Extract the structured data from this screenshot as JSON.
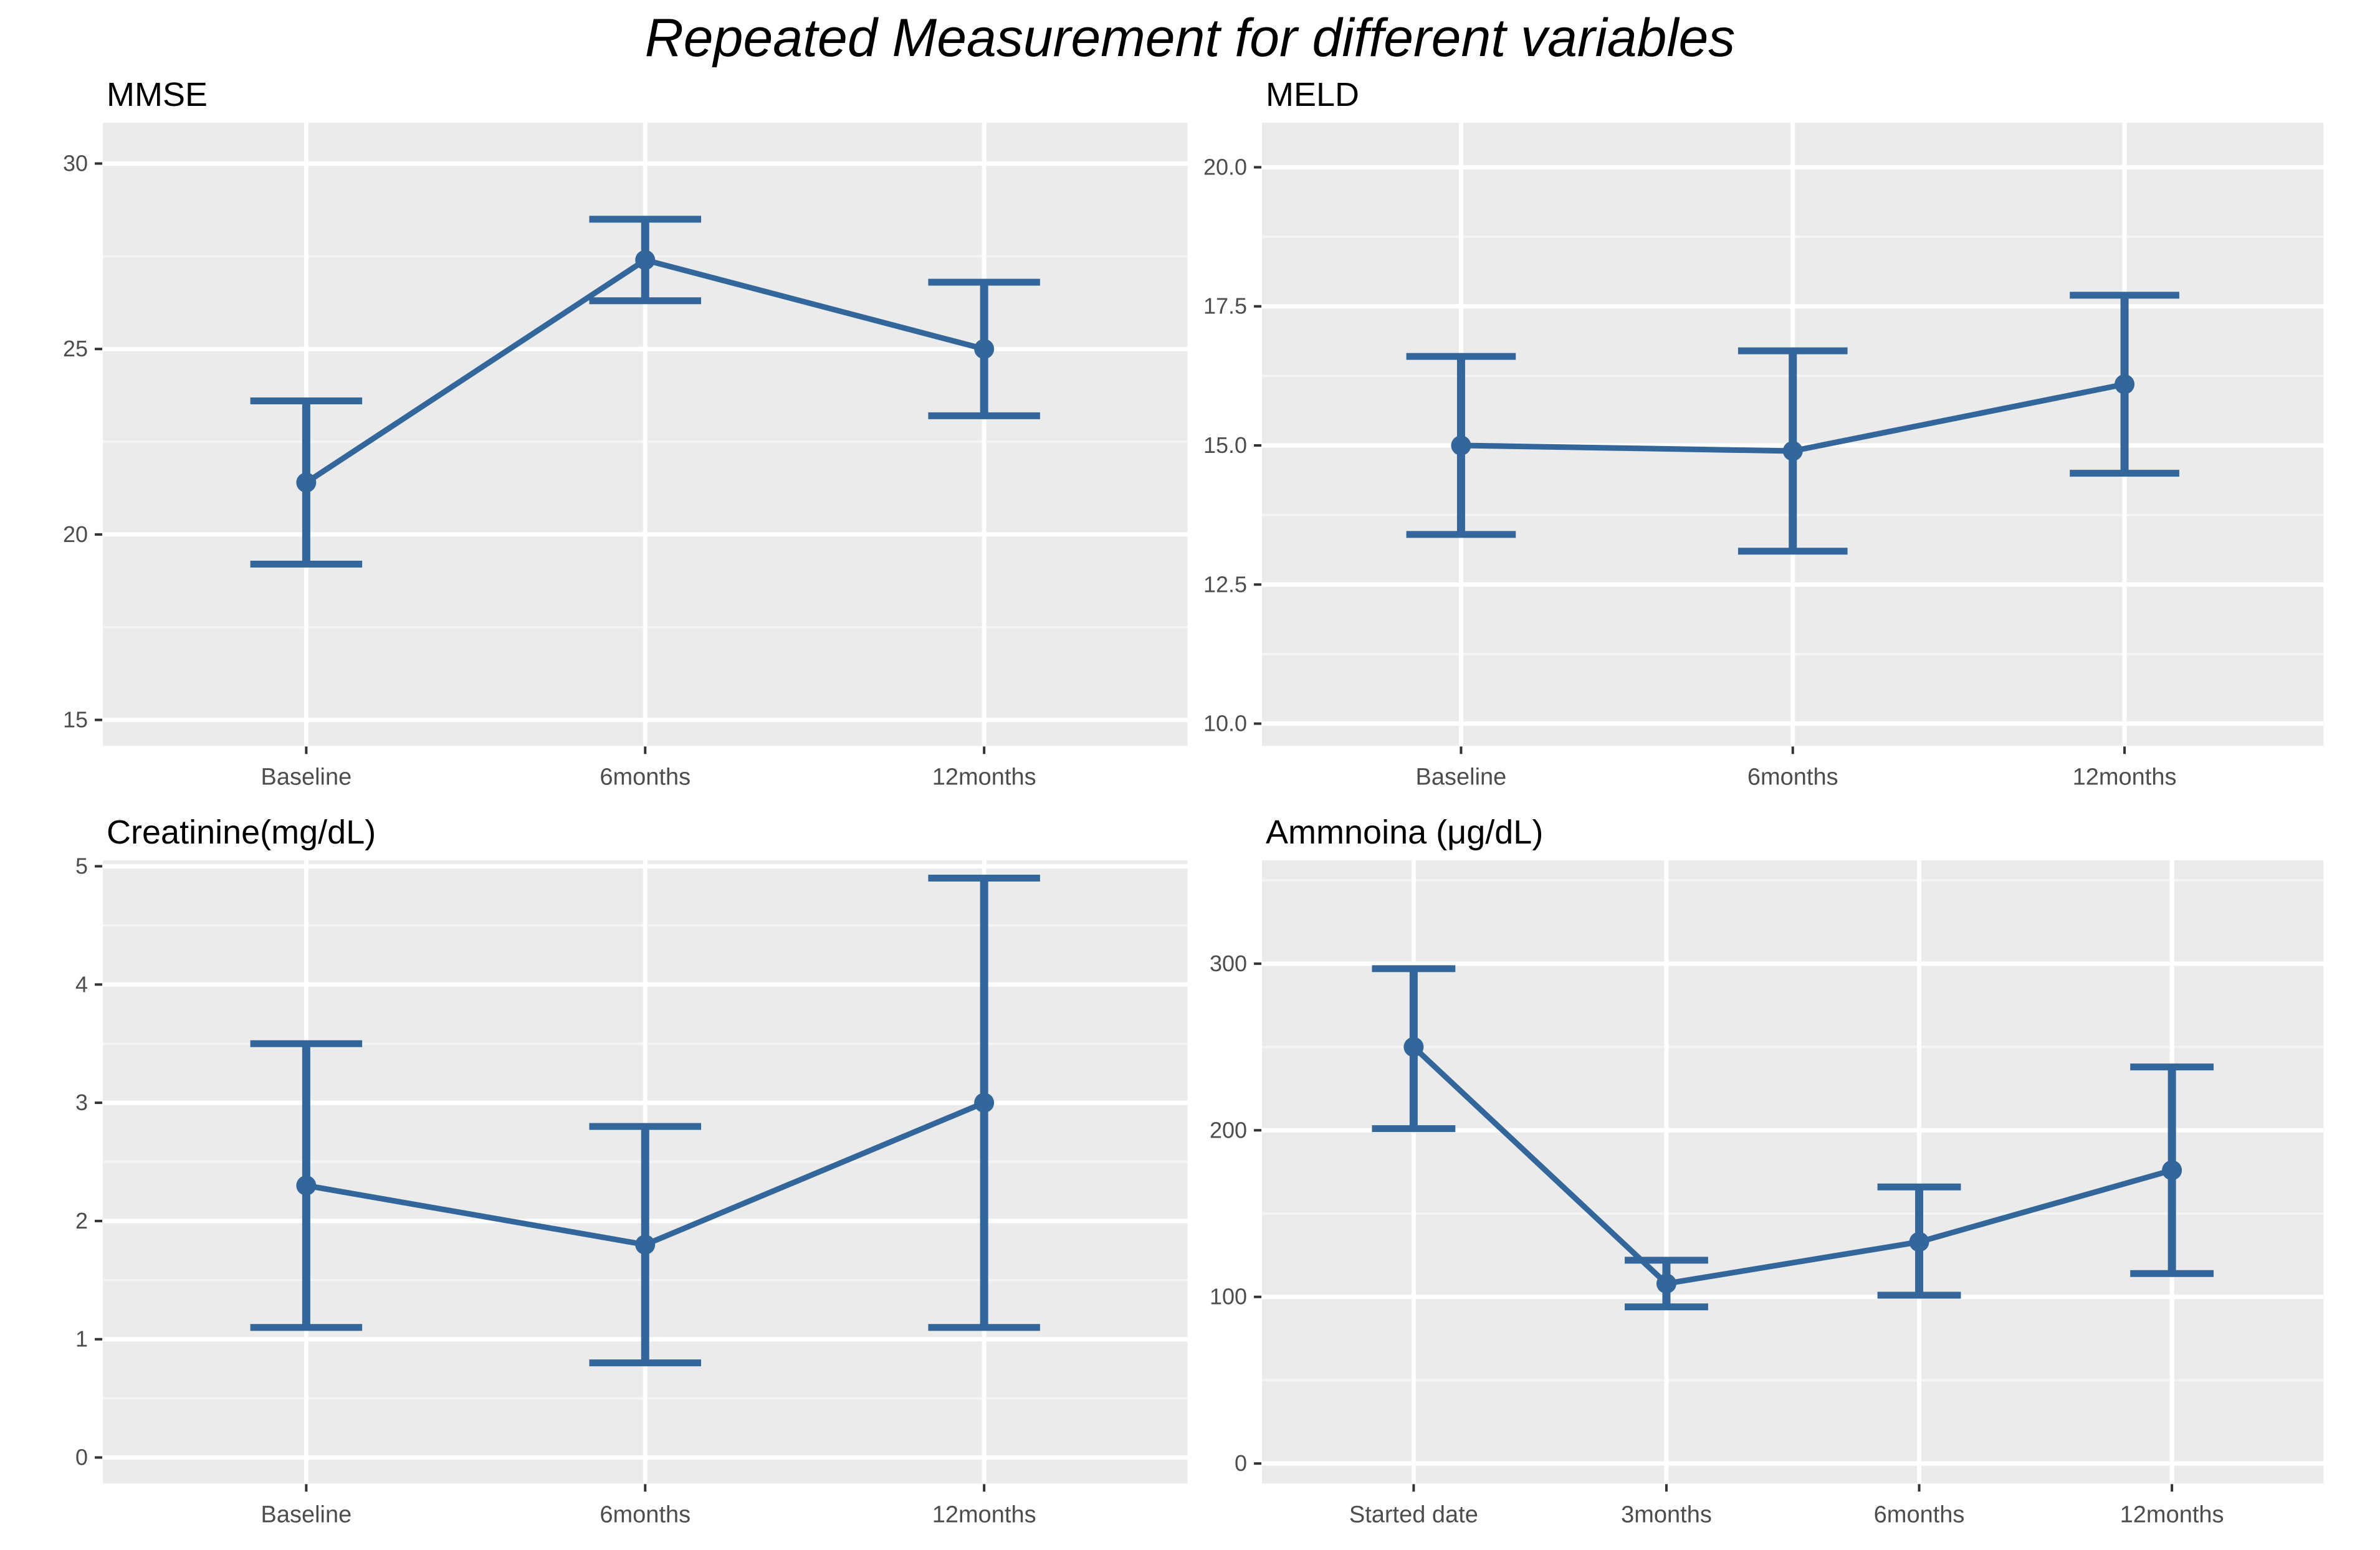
{
  "page": {
    "title": "Repeated Measurement for different variables"
  },
  "style": {
    "series_color": "#33679B",
    "panel_bg": "#EBEBEB",
    "grid_major": "#FFFFFF",
    "grid_minor": "#F5F5F5",
    "tick_text": "#4D4D4D",
    "axis_tick": "#333333",
    "title_color": "#000000",
    "page_bg": "#FFFFFF"
  },
  "chart_data": [
    {
      "type": "line",
      "title": "MMSE",
      "categories": [
        "Baseline",
        "6months",
        "12months"
      ],
      "series": [
        {
          "name": "mean",
          "values": [
            21.4,
            27.4,
            25.0
          ]
        }
      ],
      "error_lower": [
        19.2,
        26.3,
        23.2
      ],
      "error_upper": [
        23.6,
        28.5,
        26.8
      ],
      "yticks": [
        15,
        20,
        25,
        30
      ],
      "ytick_labels": [
        "15",
        "20",
        "25",
        "30"
      ],
      "ylim": [
        14.3,
        31.1
      ],
      "xlabel": "",
      "ylabel": "",
      "grid": "on",
      "legend": "none"
    },
    {
      "type": "line",
      "title": "MELD",
      "categories": [
        "Baseline",
        "6months",
        "12months"
      ],
      "series": [
        {
          "name": "mean",
          "values": [
            15.0,
            14.9,
            16.1
          ]
        }
      ],
      "error_lower": [
        13.4,
        13.1,
        14.5
      ],
      "error_upper": [
        16.6,
        16.7,
        17.7
      ],
      "yticks": [
        10,
        12.5,
        15,
        17.5,
        20
      ],
      "ytick_labels": [
        "10.0",
        "12.5",
        "15.0",
        "17.5",
        "20.0"
      ],
      "ylim": [
        9.6,
        20.8
      ],
      "xlabel": "",
      "ylabel": "",
      "grid": "on",
      "legend": "none"
    },
    {
      "type": "line",
      "title": "Creatinine(mg/dL)",
      "categories": [
        "Baseline",
        "6months",
        "12months"
      ],
      "series": [
        {
          "name": "mean",
          "values": [
            2.3,
            1.8,
            3.0
          ]
        }
      ],
      "error_lower": [
        1.1,
        0.8,
        1.1
      ],
      "error_upper": [
        3.5,
        2.8,
        4.9
      ],
      "yticks": [
        0,
        1,
        2,
        3,
        4,
        5
      ],
      "ytick_labels": [
        "0",
        "1",
        "2",
        "3",
        "4",
        "5"
      ],
      "ylim": [
        -0.22,
        5.05
      ],
      "xlabel": "",
      "ylabel": "",
      "grid": "on",
      "legend": "none"
    },
    {
      "type": "line",
      "title": "Ammnoina (μg/dL)",
      "categories": [
        "Started date",
        "3months",
        "6months",
        "12months"
      ],
      "series": [
        {
          "name": "mean",
          "values": [
            250,
            108,
            133,
            176
          ]
        }
      ],
      "error_lower": [
        201,
        94,
        101,
        114
      ],
      "error_upper": [
        297,
        122,
        166,
        238
      ],
      "yticks": [
        0,
        100,
        200,
        300
      ],
      "ytick_labels": [
        "0",
        "100",
        "200",
        "300"
      ],
      "ylim": [
        -12,
        362
      ],
      "xlabel": "",
      "ylabel": "",
      "grid": "on",
      "legend": "none"
    }
  ]
}
